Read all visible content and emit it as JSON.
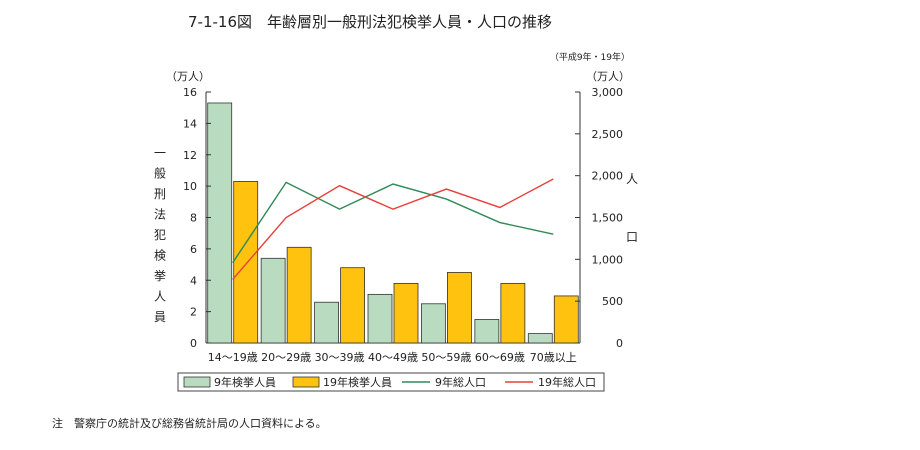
{
  "page": {
    "title": "7-1-16図　年齢層別一般刑法犯検挙人員・人口の推移",
    "subtitle": "（平成9年・19年）",
    "note": "注　警察庁の統計及び総務省統計局の人口資料による。"
  },
  "chart_data": {
    "type": "bar",
    "categories": [
      "14～19歳",
      "20～29歳",
      "30～39歳",
      "40～49歳",
      "50～59歳",
      "60～69歳",
      "70歳以上"
    ],
    "left_axis": {
      "unit": "（万人）",
      "label": [
        "一",
        "般",
        "刑",
        "法",
        "犯",
        "検",
        "挙",
        "人",
        "員"
      ],
      "ylim": [
        0,
        16
      ],
      "ticks": [
        "0",
        "2",
        "4",
        "6",
        "8",
        "10",
        "12",
        "14",
        "16"
      ]
    },
    "right_axis": {
      "unit": "（万人）",
      "label": [
        "人",
        "口"
      ],
      "ylim": [
        0,
        3000
      ],
      "ticks": [
        "0",
        "500",
        "1,000",
        "1,500",
        "2,000",
        "2,500",
        "3,000"
      ]
    },
    "bar_series": [
      {
        "name": "9年検挙人員",
        "color": "#b9dcc1",
        "values": [
          15.3,
          5.4,
          2.6,
          3.1,
          2.5,
          1.5,
          0.6
        ]
      },
      {
        "name": "19年検挙人員",
        "color": "#ffc20e",
        "values": [
          10.3,
          6.1,
          4.8,
          3.8,
          4.5,
          3.8,
          3.0
        ]
      }
    ],
    "line_series": [
      {
        "name": "9年総人口",
        "color": "#2e8b57",
        "values": [
          960,
          1920,
          1600,
          1900,
          1720,
          1440,
          1300
        ]
      },
      {
        "name": "19年総人口",
        "color": "#e8403a",
        "values": [
          760,
          1500,
          1880,
          1600,
          1840,
          1620,
          1960
        ]
      }
    ],
    "legend_position": "bottom",
    "grid": false
  }
}
